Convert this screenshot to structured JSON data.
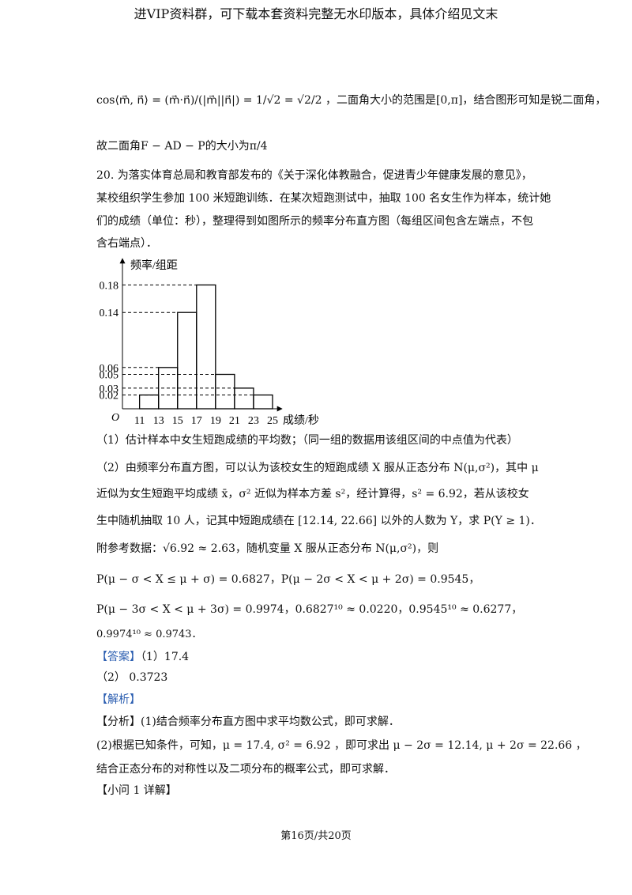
{
  "header": "进VIP资料群，可下载本套资料完整无水印版本，具体介绍见文末",
  "solution_prev": {
    "line1": "cos⟨m⃗, n⃗⟩ = (m⃗·n⃗)/(|m⃗||n⃗|) = 1/√2 = √2/2 ，二面角大小的范围是[0,π]，结合图形可知是锐二面角，",
    "line2": "故二面角F − AD − P的大小为π/4"
  },
  "problem": {
    "stem": [
      "20. 为落实体育总局和教育部发布的《关于深化体教融合，促进青少年健康发展的意见》，",
      "某校组织学生参加 100 米短跑训练．在某次短跑测试中，抽取 100 名女生作为样本，统计她",
      "们的成绩（单位：秒），整理得到如图所示的频率分布直方图（每组区间包含左端点，不包",
      "含右端点）．"
    ],
    "part1": "（1）估计样本中女生短跑成绩的平均数；（同一组的数据用该组区间的中点值为代表）",
    "part2": [
      "（2）由频率分布直方图，可以认为该校女生的短跑成绩 X 服从正态分布 N(μ,σ²)，其中 μ",
      "近似为女生短跑平均成绩 x̄，σ² 近似为样本方差 s²，经计算得，s² = 6.92，若从该校女",
      "生中随机抽取 10 人，记其中短跑成绩在 [12.14, 22.66] 以外的人数为 Y，求 P(Y ≥ 1)．"
    ],
    "reference": [
      "附参考数据：√6.92 ≈ 2.63，随机变量 X 服从正态分布 N(μ,σ²)，则",
      "P(μ − σ < X ≤ μ + σ) = 0.6827，P(μ − 2σ < X < μ + 2σ) = 0.9545，",
      "P(μ − 3σ < X < μ + 3σ) = 0.9974，0.6827¹⁰ ≈ 0.0220，0.9545¹⁰ ≈ 0.6277，",
      "0.9974¹⁰ ≈ 0.9743．"
    ]
  },
  "chart_data": {
    "type": "histogram",
    "y_label": "频率/组距",
    "x_label": "成绩/秒",
    "origin_label": "O",
    "bins": [
      11,
      13,
      15,
      17,
      19,
      21,
      23,
      25
    ],
    "values": [
      0.02,
      0.06,
      0.14,
      0.18,
      0.05,
      0.03,
      0.02
    ],
    "xlim": [
      9.2,
      26
    ],
    "ylim": [
      0,
      0.2
    ],
    "xticks": [
      11,
      13,
      15,
      17,
      19,
      21,
      23,
      25
    ],
    "yticks": [
      0.18,
      0.14,
      0.06,
      0.05,
      0.03,
      0.02
    ],
    "color": "#000000"
  },
  "answer": {
    "tag": "【答案】",
    "part1": "（1）17.4",
    "part2": "（2） 0.3723"
  },
  "analysis": {
    "tag": "【解析】",
    "lines": [
      "【分析】(1)结合频率分布直方图中求平均数公式，即可求解．",
      "(2)根据已知条件，可知，μ = 17.4, σ² = 6.92 ，即可求出 μ − 2σ = 12.14, μ + 2σ = 22.66 ，",
      "结合正态分布的对称性以及二项分布的概率公式，即可求解．"
    ],
    "subheading": "【小问 1 详解】"
  },
  "footer": "第16页/共20页"
}
